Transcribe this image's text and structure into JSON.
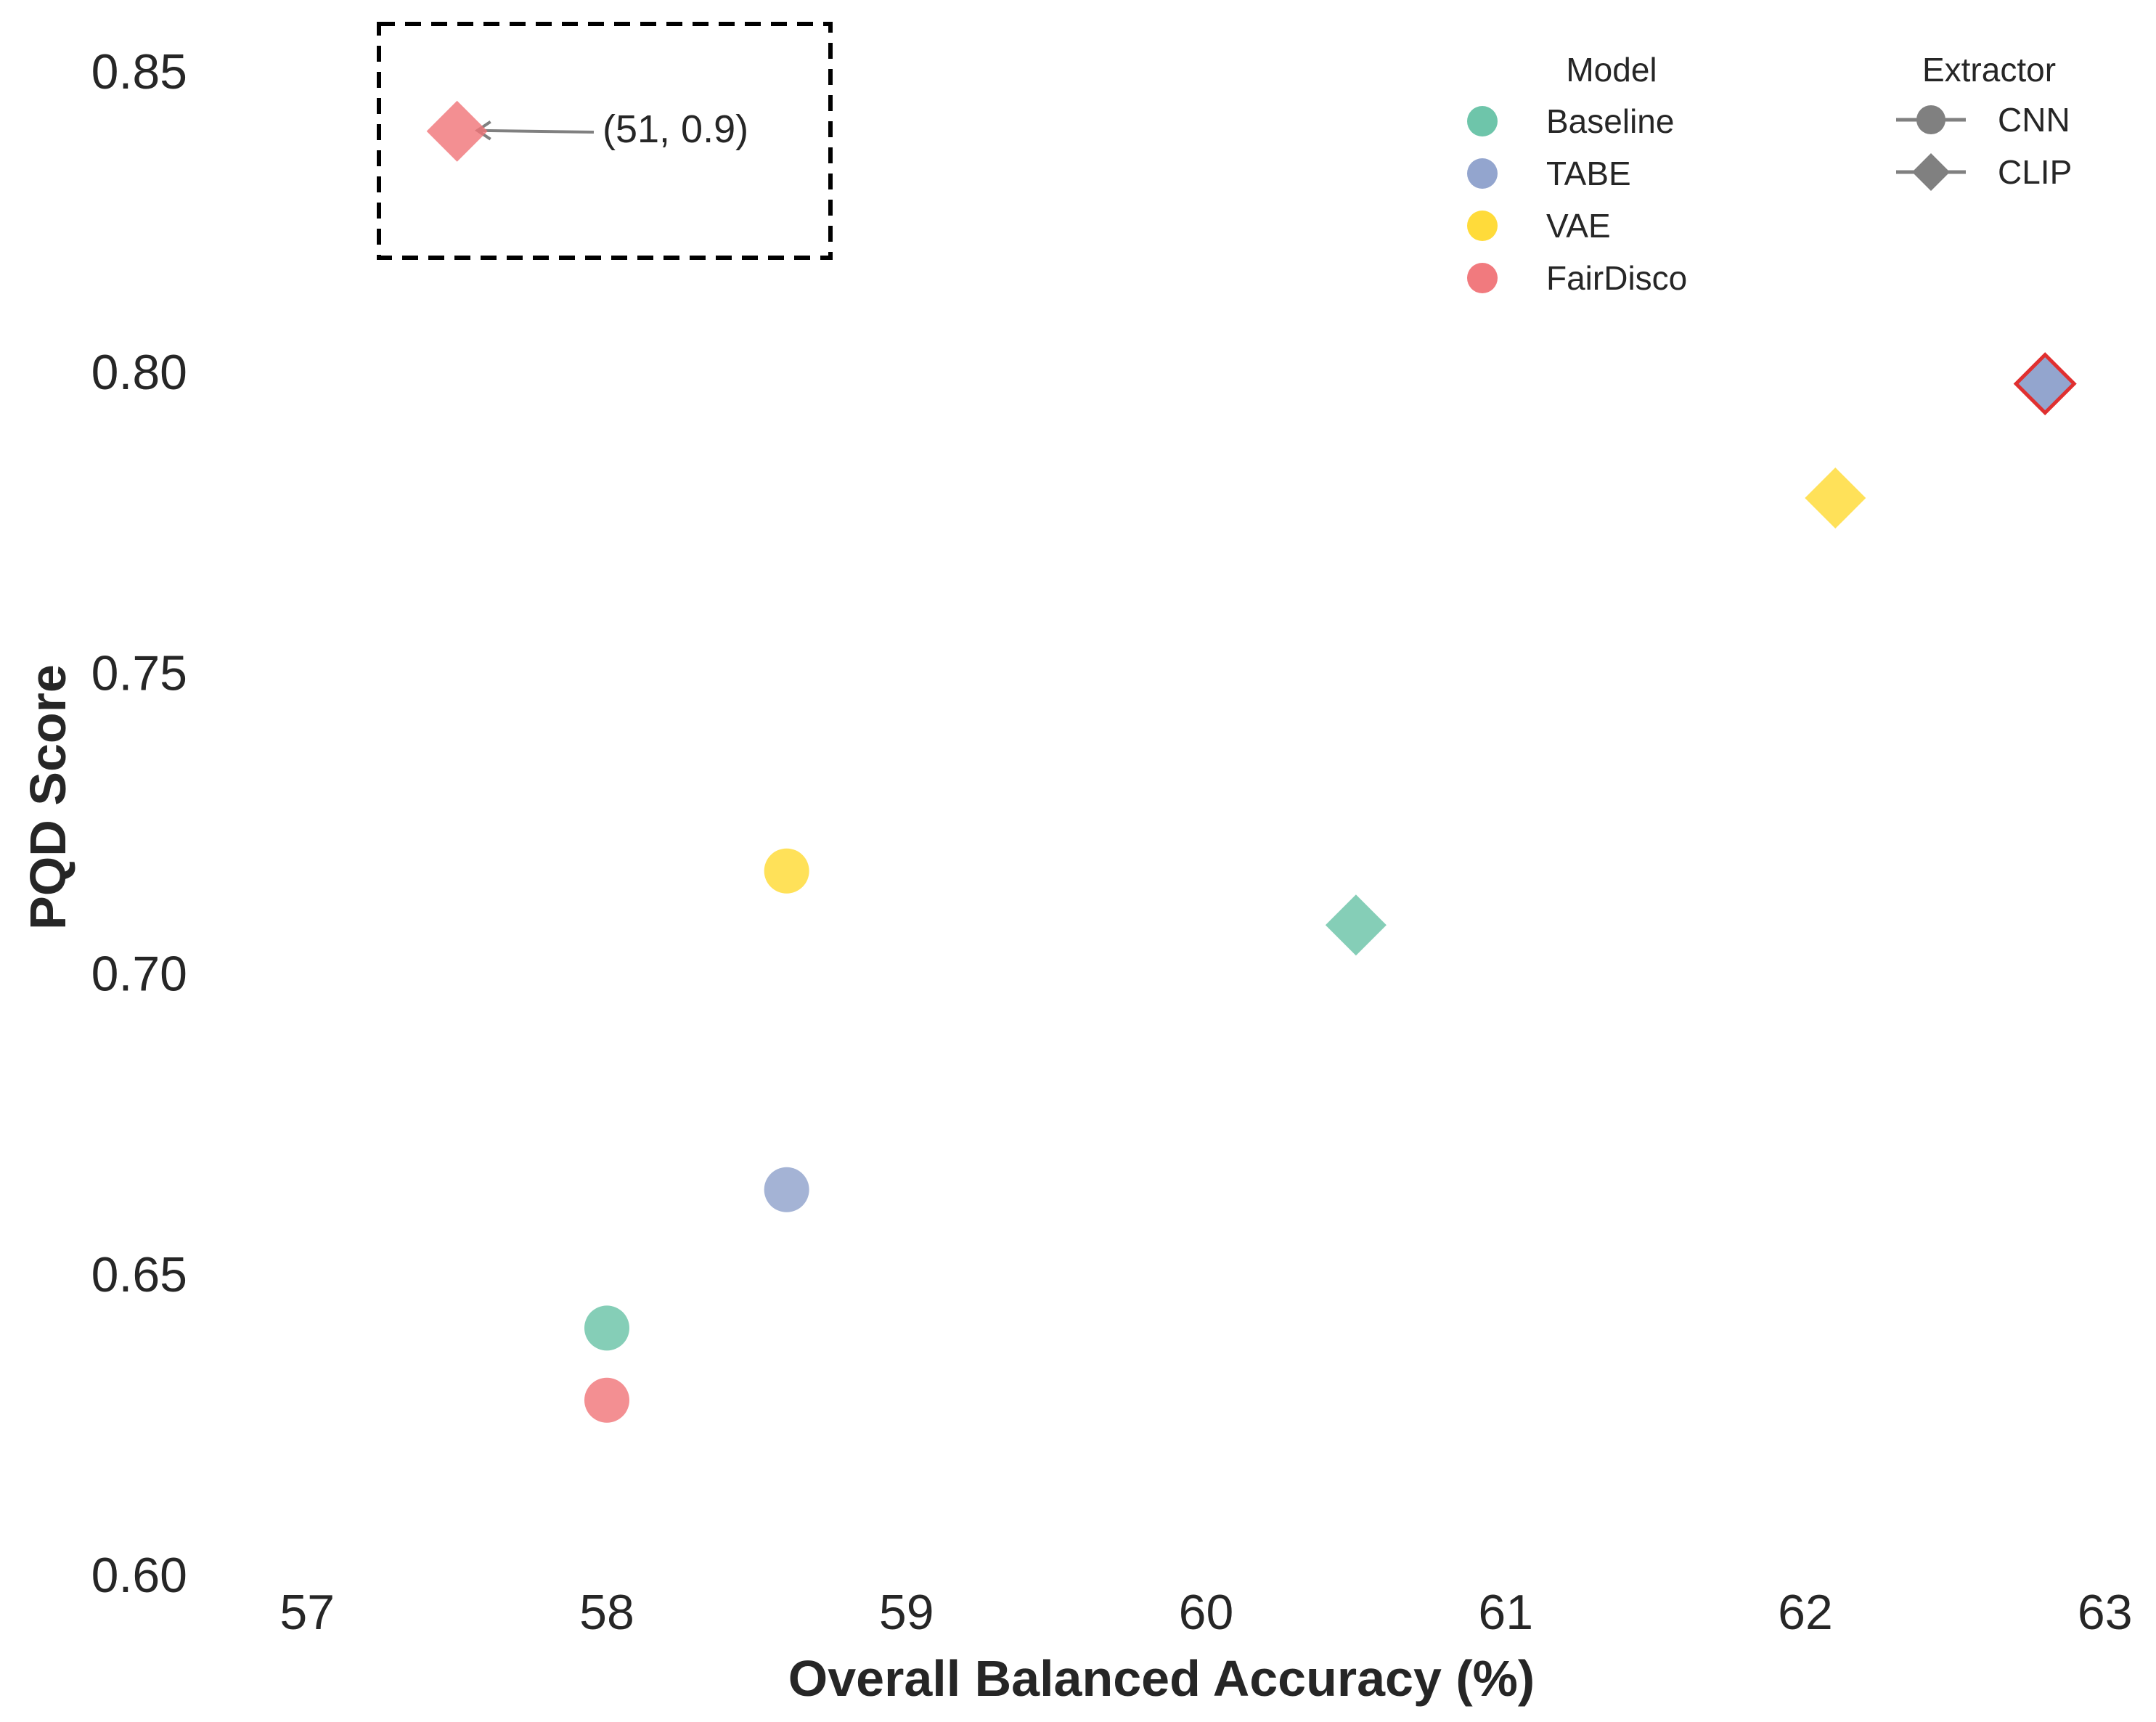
{
  "chart_data": {
    "type": "scatter",
    "title": "",
    "xlabel": "Overall Balanced Accuracy (%)",
    "ylabel": "PQD Score",
    "xlim": [
      56.98,
      63.02
    ],
    "ylim": [
      0.6,
      0.86
    ],
    "xticks": [
      57,
      58,
      59,
      60,
      61,
      62,
      63
    ],
    "xtick_labels": [
      "57",
      "58",
      "59",
      "60",
      "61",
      "62",
      "63"
    ],
    "yticks": [
      0.6,
      0.65,
      0.7,
      0.75,
      0.8,
      0.85
    ],
    "ytick_labels": [
      "0.60",
      "0.65",
      "0.70",
      "0.75",
      "0.80",
      "0.85"
    ],
    "grid": false,
    "points": [
      {
        "model": "Baseline",
        "extractor": "CNN",
        "x": 58.0,
        "y": 0.641
      },
      {
        "model": "FairDisco",
        "extractor": "CNN",
        "x": 58.0,
        "y": 0.629
      },
      {
        "model": "TABE",
        "extractor": "CNN",
        "x": 58.6,
        "y": 0.664
      },
      {
        "model": "VAE",
        "extractor": "CNN",
        "x": 58.6,
        "y": 0.717
      },
      {
        "model": "Baseline",
        "extractor": "CLIP",
        "x": 60.5,
        "y": 0.708
      },
      {
        "model": "VAE",
        "extractor": "CLIP",
        "x": 62.1,
        "y": 0.779
      },
      {
        "model": "TABE",
        "extractor": "CLIP",
        "x": 62.8,
        "y": 0.798,
        "highlight": true
      },
      {
        "model": "FairDisco",
        "extractor": "CLIP",
        "x": 57.5,
        "y": 0.84,
        "actual": "(51, 0.9)"
      }
    ],
    "annotation": {
      "text": "(51, 0.9)",
      "target_model": "FairDisco",
      "target_extractor": "CLIP",
      "box": "dashed inset marking off-scale point"
    },
    "legend": {
      "placement": "top-right",
      "model_title": "Model",
      "models": [
        {
          "name": "Baseline",
          "color": "#66c2a5"
        },
        {
          "name": "TABE",
          "color": "#8da0cb"
        },
        {
          "name": "VAE",
          "color": "#ffd92f"
        },
        {
          "name": "FairDisco",
          "color": "#f07377"
        }
      ],
      "extractor_title": "Extractor",
      "extractors": [
        {
          "name": "CNN",
          "marker": "circle"
        },
        {
          "name": "CLIP",
          "marker": "diamond"
        }
      ]
    },
    "highlight_edge_color": "#e03030"
  }
}
